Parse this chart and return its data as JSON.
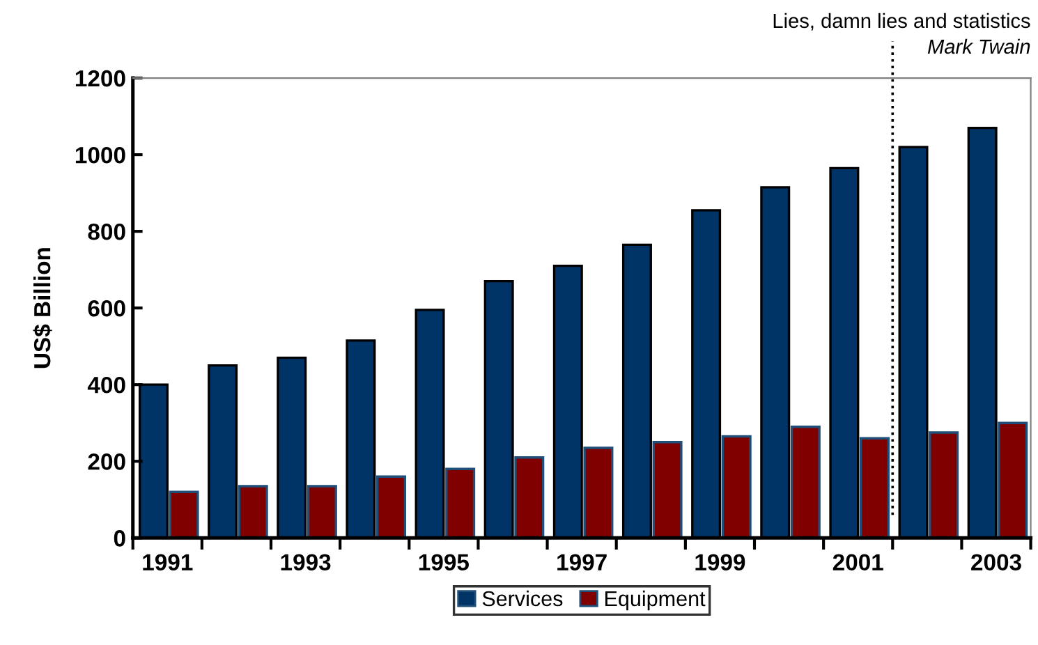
{
  "chart_data": {
    "type": "bar",
    "ylabel": "US$ Billion",
    "categories": [
      "1991",
      null,
      "1993",
      null,
      "1995",
      null,
      "1997",
      null,
      "1999",
      null,
      "2001",
      null,
      "2003"
    ],
    "series": [
      {
        "name": "Services",
        "color": "#003366",
        "values": [
          400,
          450,
          470,
          515,
          595,
          670,
          710,
          765,
          855,
          915,
          965,
          1020,
          1070
        ]
      },
      {
        "name": "Equipment",
        "color": "#800000",
        "values": [
          120,
          135,
          135,
          160,
          180,
          210,
          235,
          250,
          265,
          290,
          260,
          275,
          300
        ]
      }
    ],
    "ylim": [
      0,
      1200
    ],
    "yticks": [
      0,
      200,
      400,
      600,
      800,
      1000,
      1200
    ],
    "annotations": [
      "Lies, damn lies and statistics",
      "Mark Twain"
    ],
    "legend": "bottom",
    "grid": false
  }
}
